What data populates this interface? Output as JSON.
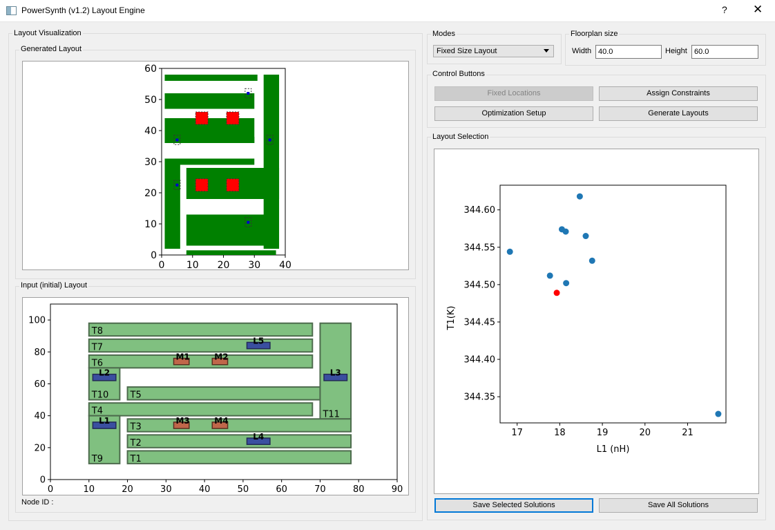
{
  "window": {
    "title": "PowerSynth (v1.2) Layout Engine",
    "help_label": "?",
    "close_label": "✕"
  },
  "left": {
    "group_label": "Layout Visualization",
    "generated_label": "Generated Layout",
    "input_label": "Input (initial) Layout",
    "node_id_label": "Node ID :"
  },
  "modes": {
    "label": "Modes",
    "selected": "Fixed Size Layout"
  },
  "floorplan": {
    "label": "Floorplan size",
    "width_label": "Width",
    "width_value": "40.0",
    "height_label": "Height",
    "height_value": "60.0"
  },
  "controls": {
    "label": "Control Buttons",
    "fixed_locations": "Fixed Locations",
    "assign_constraints": "Assign Constraints",
    "optimization_setup": "Optimization Setup",
    "generate_layouts": "Generate Layouts"
  },
  "layout_selection": {
    "label": "Layout Selection",
    "save_selected": "Save Selected Solutions",
    "save_all": "Save All Solutions"
  },
  "colors": {
    "trace": "#008000",
    "device": "#ff0000",
    "lead": "#0000cc",
    "input_trace": "#80c080",
    "input_lead": "#3a4fa0",
    "input_device": "#c0664a",
    "point": "#1f77b4",
    "selected_point": "#ff0000"
  },
  "chart_data": [
    {
      "type": "scatter",
      "name": "generated_layout",
      "xlim": [
        0,
        40
      ],
      "ylim": [
        0,
        60
      ],
      "xticks": [
        0,
        10,
        20,
        30,
        40
      ],
      "yticks": [
        0,
        10,
        20,
        30,
        40,
        50,
        60
      ],
      "traces": [
        [
          1,
          56,
          30,
          2
        ],
        [
          1,
          47,
          29,
          5
        ],
        [
          1,
          36,
          29,
          8
        ],
        [
          1,
          29,
          29,
          2
        ],
        [
          1,
          2,
          5,
          27
        ],
        [
          8,
          36,
          22,
          2
        ],
        [
          33,
          2,
          5,
          56
        ],
        [
          8,
          18,
          30,
          10
        ],
        [
          8,
          3,
          29,
          10
        ],
        [
          8,
          0,
          29,
          1.5
        ]
      ],
      "devices": [
        [
          13,
          44
        ],
        [
          23,
          44
        ],
        [
          13,
          22.5
        ],
        [
          23,
          22.5
        ]
      ],
      "leads": [
        [
          28,
          52
        ],
        [
          5,
          37
        ],
        [
          35,
          37
        ],
        [
          5,
          22.5
        ],
        [
          28,
          10.5
        ]
      ]
    },
    {
      "type": "scatter",
      "name": "input_layout",
      "xlim": [
        0,
        90
      ],
      "ylim": [
        0,
        110
      ],
      "xticks": [
        0,
        10,
        20,
        30,
        40,
        50,
        60,
        70,
        80,
        90
      ],
      "yticks": [
        0,
        20,
        40,
        60,
        80,
        100
      ],
      "traces": [
        {
          "label": "T8",
          "x": 10,
          "y": 90,
          "w": 58,
          "h": 8
        },
        {
          "label": "T7",
          "x": 10,
          "y": 80,
          "w": 58,
          "h": 8
        },
        {
          "label": "T6",
          "x": 10,
          "y": 70,
          "w": 58,
          "h": 8
        },
        {
          "label": "T10",
          "x": 10,
          "y": 50,
          "w": 8,
          "h": 20
        },
        {
          "label": "T5",
          "x": 20,
          "y": 50,
          "w": 50,
          "h": 8
        },
        {
          "label": "T4",
          "x": 10,
          "y": 40,
          "w": 58,
          "h": 8
        },
        {
          "label": "T11",
          "x": 70,
          "y": 38,
          "w": 8,
          "h": 60
        },
        {
          "label": "T3",
          "x": 20,
          "y": 30,
          "w": 58,
          "h": 8
        },
        {
          "label": "T9",
          "x": 10,
          "y": 10,
          "w": 8,
          "h": 30
        },
        {
          "label": "T2",
          "x": 20,
          "y": 20,
          "w": 58,
          "h": 8
        },
        {
          "label": "T1",
          "x": 20,
          "y": 10,
          "w": 58,
          "h": 8
        }
      ],
      "leads": [
        {
          "label": "L5",
          "x": 51,
          "y": 82,
          "w": 6,
          "h": 4
        },
        {
          "label": "L2",
          "x": 11,
          "y": 62,
          "w": 6,
          "h": 4
        },
        {
          "label": "L3",
          "x": 71,
          "y": 62,
          "w": 6,
          "h": 4
        },
        {
          "label": "L1",
          "x": 11,
          "y": 32,
          "w": 6,
          "h": 4
        },
        {
          "label": "L4",
          "x": 51,
          "y": 22,
          "w": 6,
          "h": 4
        }
      ],
      "devices": [
        {
          "label": "M1",
          "x": 32,
          "y": 72,
          "w": 4,
          "h": 4
        },
        {
          "label": "M2",
          "x": 42,
          "y": 72,
          "w": 4,
          "h": 4
        },
        {
          "label": "M3",
          "x": 32,
          "y": 32,
          "w": 4,
          "h": 4
        },
        {
          "label": "M4",
          "x": 42,
          "y": 32,
          "w": 4,
          "h": 4
        }
      ]
    },
    {
      "type": "scatter",
      "name": "layout_selection",
      "xlabel": "L1 (nH)",
      "ylabel": "T1(K)",
      "xlim": [
        16.6,
        21.9
      ],
      "ylim": [
        344.315,
        344.633
      ],
      "xticks": [
        17,
        18,
        19,
        20,
        21
      ],
      "yticks": [
        344.35,
        344.4,
        344.45,
        344.5,
        344.55,
        344.6
      ],
      "ytick_labels": [
        "344.35",
        "344.40",
        "344.45",
        "344.50",
        "344.55",
        "344.60"
      ],
      "points": [
        {
          "x": 16.83,
          "y": 344.544
        },
        {
          "x": 17.77,
          "y": 344.512
        },
        {
          "x": 18.05,
          "y": 344.574
        },
        {
          "x": 18.14,
          "y": 344.571
        },
        {
          "x": 18.47,
          "y": 344.618
        },
        {
          "x": 18.61,
          "y": 344.565
        },
        {
          "x": 18.76,
          "y": 344.532
        },
        {
          "x": 18.15,
          "y": 344.502
        },
        {
          "x": 21.72,
          "y": 344.327
        }
      ],
      "selected": {
        "x": 17.93,
        "y": 344.489
      }
    }
  ]
}
